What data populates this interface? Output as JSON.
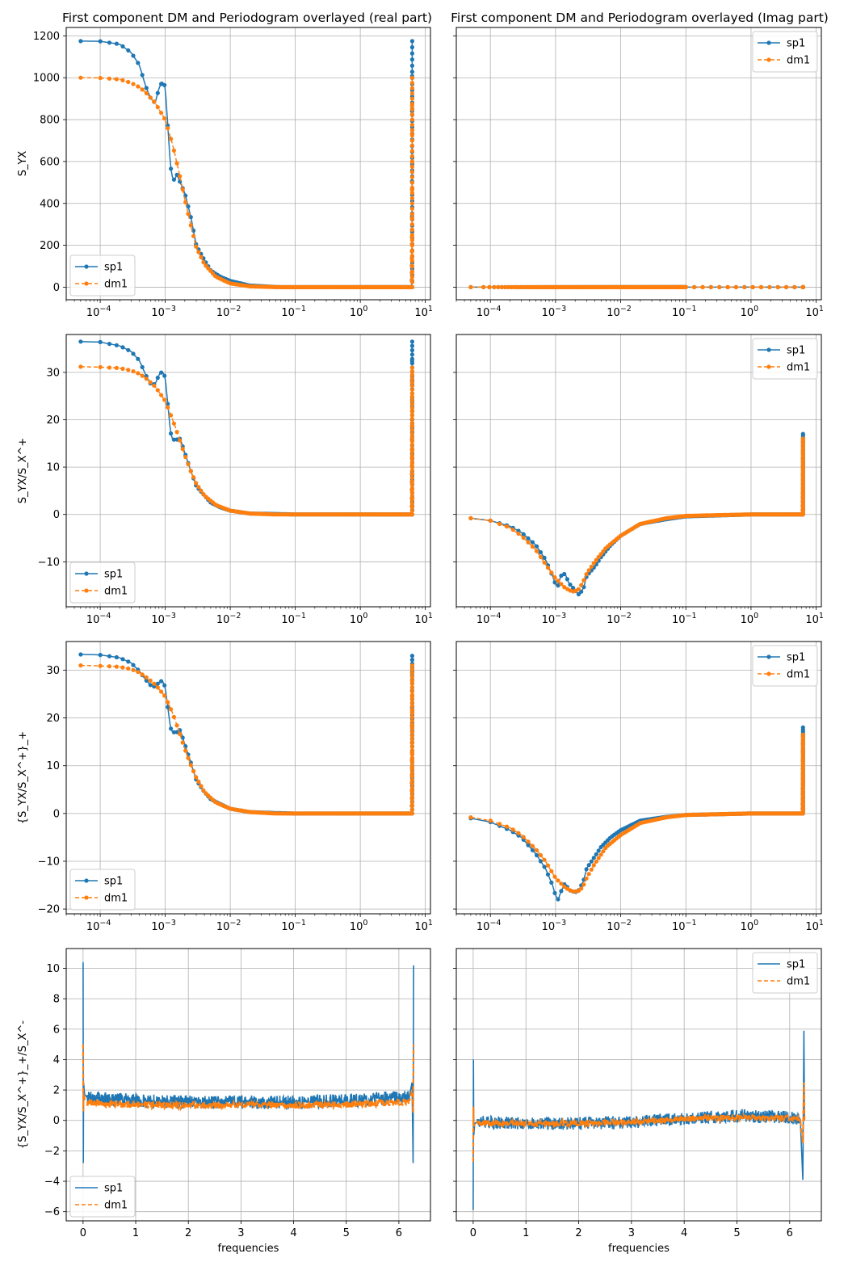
{
  "figure": {
    "titles": [
      "First component DM and Periodogram overlayed (real part)",
      "First component DM and Periodogram overlayed (Imag part)"
    ],
    "xlabel_bottom": "frequencies",
    "colors": {
      "sp1": "#1f77b4",
      "dm1": "#ff7f0e",
      "grid": "#b0b0b0"
    }
  },
  "chart_data": [
    {
      "type": "line",
      "title": "First component DM and Periodogram overlayed (real part)",
      "ylabel": "S_YX",
      "xlabel": "",
      "xscale": "log",
      "xlim": [
        3e-05,
        12
      ],
      "ylim": [
        -60,
        1240
      ],
      "yticks": [
        0,
        200,
        400,
        600,
        800,
        1000,
        1200
      ],
      "xtick_labels": [
        "10^-4",
        "10^-3",
        "10^-2",
        "10^-1",
        "10^0",
        "10^1"
      ],
      "grid": true,
      "legend": "lower-left",
      "series": [
        {
          "name": "sp1",
          "style": "solid-marker",
          "x": [
            5e-05,
            0.0001,
            0.0002,
            0.0003,
            0.0004,
            0.0005,
            0.0006,
            0.0007,
            0.0008,
            0.0009,
            0.001,
            0.0011,
            0.0012,
            0.0013,
            0.0014,
            0.0015,
            0.0017,
            0.002,
            0.0025,
            0.003,
            0.004,
            0.005,
            0.007,
            0.01,
            0.02,
            0.05,
            0.1,
            1,
            6.2,
            6.25,
            6.28
          ],
          "y": [
            1175,
            1174,
            1160,
            1120,
            1060,
            960,
            900,
            880,
            950,
            980,
            960,
            760,
            580,
            520,
            510,
            540,
            500,
            450,
            330,
            200,
            130,
            80,
            50,
            30,
            8,
            1,
            0,
            0,
            0,
            300,
            1175
          ]
        },
        {
          "name": "dm1",
          "style": "dashed-marker",
          "x": [
            5e-05,
            0.0001,
            0.0002,
            0.0003,
            0.0004,
            0.0005,
            0.0007,
            0.001,
            0.0013,
            0.0016,
            0.002,
            0.0025,
            0.003,
            0.004,
            0.006,
            0.01,
            0.02,
            0.05,
            0.1,
            1,
            6.2,
            6.25,
            6.28
          ],
          "y": [
            1000,
            999,
            992,
            975,
            955,
            930,
            880,
            800,
            680,
            560,
            420,
            290,
            190,
            110,
            50,
            18,
            4,
            0.5,
            0,
            0,
            0,
            300,
            1000
          ]
        }
      ]
    },
    {
      "type": "line",
      "title": "First component DM and Periodogram overlayed (Imag part)",
      "ylabel": "",
      "xlabel": "",
      "xscale": "log",
      "xlim": [
        3e-05,
        12
      ],
      "ylim": [
        -60,
        1240
      ],
      "yticks": [
        0,
        200,
        400,
        600,
        800,
        1000,
        1200
      ],
      "xtick_labels": [
        "10^-4",
        "10^-3",
        "10^-2",
        "10^-1",
        "10^0",
        "10^1"
      ],
      "grid": true,
      "legend": "upper-right",
      "series": [
        {
          "name": "sp1",
          "style": "solid-marker",
          "x": [
            5e-05,
            0.0001,
            0.001,
            0.01,
            0.1,
            1,
            6.28
          ],
          "y": [
            0,
            0,
            0,
            0,
            0,
            0,
            0
          ]
        },
        {
          "name": "dm1",
          "style": "dashed-marker",
          "x": [
            5e-05,
            0.0001,
            0.001,
            0.01,
            0.1,
            1,
            6.28
          ],
          "y": [
            0,
            0,
            0,
            0,
            0,
            0,
            0
          ]
        }
      ]
    },
    {
      "type": "line",
      "ylabel": "S_YX/S_X^+",
      "xlabel": "",
      "xscale": "log",
      "xlim": [
        3e-05,
        12
      ],
      "ylim": [
        -19.5,
        38
      ],
      "yticks": [
        -10,
        0,
        10,
        20,
        30
      ],
      "xtick_labels": [
        "10^-4",
        "10^-3",
        "10^-2",
        "10^-1",
        "10^0",
        "10^1"
      ],
      "grid": true,
      "legend": "lower-left",
      "series": [
        {
          "name": "sp1",
          "style": "solid-marker",
          "x": [
            5e-05,
            0.0001,
            0.0002,
            0.0003,
            0.0004,
            0.0005,
            0.0006,
            0.0007,
            0.0008,
            0.0009,
            0.001,
            0.0011,
            0.0012,
            0.0013,
            0.0015,
            0.0017,
            0.002,
            0.0025,
            0.003,
            0.004,
            0.005,
            0.007,
            0.01,
            0.02,
            0.05,
            0.1,
            1,
            6.2,
            6.25,
            6.28
          ],
          "y": [
            36.5,
            36.4,
            35.6,
            34.4,
            32.5,
            29.5,
            27.5,
            27.5,
            29.5,
            30.2,
            29,
            23,
            17.5,
            15.8,
            15.8,
            16,
            13,
            9,
            6,
            4,
            2.5,
            1.5,
            0.8,
            0.2,
            0.1,
            0,
            0,
            0,
            15,
            36.5
          ]
        },
        {
          "name": "dm1",
          "style": "dashed-marker",
          "x": [
            5e-05,
            0.0001,
            0.0002,
            0.0003,
            0.0004,
            0.0005,
            0.0007,
            0.001,
            0.0013,
            0.0016,
            0.002,
            0.0025,
            0.003,
            0.004,
            0.006,
            0.01,
            0.02,
            0.05,
            0.1,
            1,
            6.2,
            6.25,
            6.28
          ],
          "y": [
            31.2,
            31.1,
            30.9,
            30.4,
            29.7,
            28.8,
            27,
            24,
            20,
            16.5,
            12.5,
            9,
            6.5,
            4,
            2,
            0.8,
            0.2,
            0,
            0,
            0,
            0,
            15,
            31
          ]
        }
      ]
    },
    {
      "type": "line",
      "ylabel": "",
      "xlabel": "",
      "xscale": "log",
      "xlim": [
        3e-05,
        12
      ],
      "ylim": [
        -19.5,
        38
      ],
      "yticks": [
        -10,
        0,
        10,
        20,
        30
      ],
      "xtick_labels": [
        "10^-4",
        "10^-3",
        "10^-2",
        "10^-1",
        "10^0",
        "10^1"
      ],
      "grid": true,
      "legend": "upper-right",
      "series": [
        {
          "name": "sp1",
          "style": "solid-marker",
          "x": [
            5e-05,
            0.0001,
            0.0002,
            0.0003,
            0.0005,
            0.0007,
            0.0009,
            0.001,
            0.0011,
            0.0012,
            0.0014,
            0.0016,
            0.002,
            0.0023,
            0.0027,
            0.003,
            0.004,
            0.005,
            0.007,
            0.01,
            0.02,
            0.05,
            0.1,
            1,
            6.2,
            6.25,
            6.28
          ],
          "y": [
            -0.8,
            -1.3,
            -2.5,
            -3.8,
            -6.5,
            -9.5,
            -13,
            -14.8,
            -15,
            -13,
            -12.5,
            -14.5,
            -16,
            -17,
            -15.5,
            -13,
            -11,
            -9,
            -6.5,
            -4.5,
            -2,
            -1,
            -0.4,
            0,
            0,
            8,
            17
          ]
        },
        {
          "name": "dm1",
          "style": "dashed-marker",
          "x": [
            5e-05,
            0.0001,
            0.0002,
            0.0003,
            0.0005,
            0.0007,
            0.001,
            0.0014,
            0.0018,
            0.0022,
            0.0026,
            0.003,
            0.004,
            0.006,
            0.01,
            0.02,
            0.05,
            0.1,
            1,
            6.2,
            6.25,
            6.28
          ],
          "y": [
            -0.8,
            -1.3,
            -2.8,
            -4.5,
            -7.5,
            -10.5,
            -13.5,
            -15.5,
            -16.3,
            -16,
            -14.5,
            -12.5,
            -10,
            -7,
            -4.5,
            -2,
            -0.8,
            -0.3,
            0,
            0,
            8,
            16
          ]
        }
      ]
    },
    {
      "type": "line",
      "ylabel": "{S_YX/S_X^+}_+",
      "xlabel": "",
      "xscale": "log",
      "xlim": [
        3e-05,
        12
      ],
      "ylim": [
        -21,
        36
      ],
      "yticks": [
        -20,
        -10,
        0,
        10,
        20,
        30
      ],
      "xtick_labels": [
        "10^-4",
        "10^-3",
        "10^-2",
        "10^-1",
        "10^0",
        "10^1"
      ],
      "grid": true,
      "legend": "lower-left",
      "series": [
        {
          "name": "sp1",
          "style": "solid-marker",
          "x": [
            5e-05,
            0.0001,
            0.0002,
            0.0003,
            0.0004,
            0.0005,
            0.0006,
            0.0007,
            0.0008,
            0.0009,
            0.001,
            0.0011,
            0.0012,
            0.0013,
            0.0015,
            0.0017,
            0.002,
            0.0025,
            0.003,
            0.004,
            0.005,
            0.007,
            0.01,
            0.02,
            0.05,
            0.1,
            1,
            6.2,
            6.25,
            6.28
          ],
          "y": [
            33.3,
            33.2,
            32.6,
            31.5,
            29.8,
            28,
            26.8,
            26.5,
            27.5,
            27.8,
            26.5,
            22,
            18,
            17,
            17,
            17.5,
            14.5,
            10.5,
            7,
            4.5,
            3,
            2,
            1,
            0.3,
            0.1,
            0,
            0,
            0,
            14,
            33
          ]
        },
        {
          "name": "dm1",
          "style": "dashed-marker",
          "x": [
            5e-05,
            0.0001,
            0.0002,
            0.0003,
            0.0004,
            0.0005,
            0.0007,
            0.001,
            0.0013,
            0.0016,
            0.002,
            0.0025,
            0.003,
            0.004,
            0.006,
            0.01,
            0.02,
            0.05,
            0.1,
            1,
            6.2,
            6.25,
            6.28
          ],
          "y": [
            31,
            30.9,
            30.7,
            30.2,
            29.5,
            28.6,
            27,
            24.5,
            21,
            17.5,
            13.5,
            10,
            7.5,
            4.5,
            2.3,
            1,
            0.3,
            0,
            0,
            0,
            0,
            14,
            31
          ]
        }
      ]
    },
    {
      "type": "line",
      "ylabel": "",
      "xlabel": "",
      "xscale": "log",
      "xlim": [
        3e-05,
        12
      ],
      "ylim": [
        -21,
        36
      ],
      "yticks": [
        -20,
        -10,
        0,
        10,
        20,
        30
      ],
      "xtick_labels": [
        "10^-4",
        "10^-3",
        "10^-2",
        "10^-1",
        "10^0",
        "10^1"
      ],
      "grid": true,
      "legend": "upper-right",
      "series": [
        {
          "name": "sp1",
          "style": "solid-marker",
          "x": [
            5e-05,
            0.0001,
            0.0002,
            0.0003,
            0.0005,
            0.0007,
            0.0009,
            0.001,
            0.0011,
            0.0012,
            0.0014,
            0.0016,
            0.002,
            0.0023,
            0.0027,
            0.003,
            0.004,
            0.005,
            0.007,
            0.01,
            0.02,
            0.05,
            0.1,
            1,
            6.2,
            6.25,
            6.28
          ],
          "y": [
            -1,
            -1.8,
            -3.5,
            -5,
            -8.5,
            -11.5,
            -15,
            -17.2,
            -18,
            -16.5,
            -14.5,
            -16,
            -16.5,
            -16,
            -14,
            -11.5,
            -9,
            -7,
            -5,
            -3.5,
            -1.5,
            -0.7,
            -0.3,
            0,
            0,
            9,
            18
          ]
        },
        {
          "name": "dm1",
          "style": "dashed-marker",
          "x": [
            5e-05,
            0.0001,
            0.0002,
            0.0003,
            0.0005,
            0.0007,
            0.001,
            0.0014,
            0.0018,
            0.0022,
            0.0026,
            0.003,
            0.004,
            0.006,
            0.01,
            0.02,
            0.05,
            0.1,
            1,
            6.2,
            6.25,
            6.28
          ],
          "y": [
            -0.8,
            -1.5,
            -3,
            -4.5,
            -7.5,
            -10,
            -13.5,
            -15.5,
            -16.3,
            -16.3,
            -15.5,
            -13.5,
            -10.5,
            -7,
            -4.5,
            -2,
            -0.8,
            -0.3,
            0,
            0,
            8,
            16.5
          ]
        }
      ]
    },
    {
      "type": "line",
      "ylabel": "{S_YX/S_X^+}_+/S_X^-",
      "xlabel": "frequencies",
      "xscale": "linear",
      "xlim": [
        -0.32,
        6.6
      ],
      "ylim": [
        -6.6,
        11.3
      ],
      "yticks": [
        -6,
        -4,
        -2,
        0,
        2,
        4,
        6,
        8,
        10
      ],
      "xticks": [
        0,
        1,
        2,
        3,
        4,
        5,
        6
      ],
      "grid": true,
      "legend": "lower-left",
      "series": [
        {
          "name": "sp1",
          "style": "solid-noisy",
          "x": [
            0,
            0.005,
            0.01,
            0.03,
            0.08,
            0.5,
            1,
            2,
            3,
            4,
            5,
            6,
            6.2,
            6.25,
            6.27,
            6.28
          ],
          "y": [
            10.4,
            -2.8,
            2.5,
            1.7,
            1.5,
            1.4,
            1.3,
            1.2,
            1.2,
            1.2,
            1.3,
            1.5,
            1.6,
            2.5,
            -2.8,
            10.2
          ],
          "band": 0.45
        },
        {
          "name": "dm1",
          "style": "dashed-noisy",
          "x": [
            0,
            0.005,
            0.01,
            0.03,
            0.08,
            0.5,
            1,
            2,
            3,
            4,
            5,
            6,
            6.2,
            6.25,
            6.27,
            6.28
          ],
          "y": [
            5,
            0.6,
            1.8,
            1.4,
            1.2,
            1.1,
            1.05,
            1,
            1,
            1,
            1.05,
            1.2,
            1.3,
            2,
            0.5,
            5
          ],
          "band": 0.22
        }
      ]
    },
    {
      "type": "line",
      "ylabel": "",
      "xlabel": "frequencies",
      "xscale": "linear",
      "xlim": [
        -0.32,
        6.6
      ],
      "ylim": [
        -6.6,
        11.3
      ],
      "yticks": [
        -6,
        -4,
        -2,
        0,
        2,
        4,
        6,
        8,
        10
      ],
      "xticks": [
        0,
        1,
        2,
        3,
        4,
        5,
        6
      ],
      "grid": true,
      "legend": "upper-right",
      "series": [
        {
          "name": "sp1",
          "style": "solid-noisy",
          "x": [
            0,
            0.005,
            0.01,
            0.03,
            0.08,
            0.5,
            1,
            2,
            3,
            4,
            5,
            6,
            6.2,
            6.25,
            6.27,
            6.28
          ],
          "y": [
            -5.9,
            4,
            -1,
            -0.2,
            -0.1,
            -0.15,
            -0.2,
            -0.2,
            -0.1,
            0.1,
            0.3,
            0.2,
            0.1,
            -3.9,
            5.9,
            0
          ],
          "band": 0.42
        },
        {
          "name": "dm1",
          "style": "dashed-noisy",
          "x": [
            0,
            0.005,
            0.01,
            0.03,
            0.08,
            0.5,
            1,
            2,
            3,
            4,
            5,
            6,
            6.2,
            6.25,
            6.27,
            6.28
          ],
          "y": [
            -2.7,
            0.9,
            -0.4,
            -0.15,
            -0.15,
            -0.2,
            -0.2,
            -0.2,
            -0.1,
            0.1,
            0.2,
            0.15,
            0.05,
            -1.5,
            2.5,
            0
          ],
          "band": 0.2
        }
      ]
    }
  ]
}
